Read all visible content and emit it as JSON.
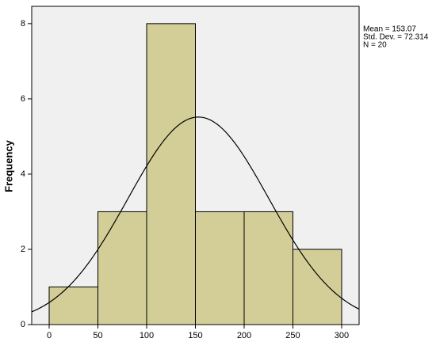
{
  "chart_data": {
    "type": "histogram",
    "y_label": "Frequency",
    "bins": [
      0,
      50,
      100,
      150,
      200,
      250,
      300
    ],
    "counts": [
      1,
      3,
      8,
      3,
      3,
      2
    ],
    "color": "#d3ce97",
    "xlim": [
      -17.9,
      317.9
    ],
    "xticks": [
      0,
      50,
      100,
      150,
      200,
      250,
      300
    ],
    "ylim": [
      0,
      8.46
    ],
    "yticks": [
      0,
      2,
      4,
      6,
      8
    ],
    "normal_curve": true,
    "stats": [
      {
        "value": 153.07,
        "label": "Mean = 153.07"
      },
      {
        "value": 72.314,
        "label": "Std. Dev. = 72.314"
      },
      {
        "value": 20,
        "label": "N = 20"
      }
    ]
  }
}
